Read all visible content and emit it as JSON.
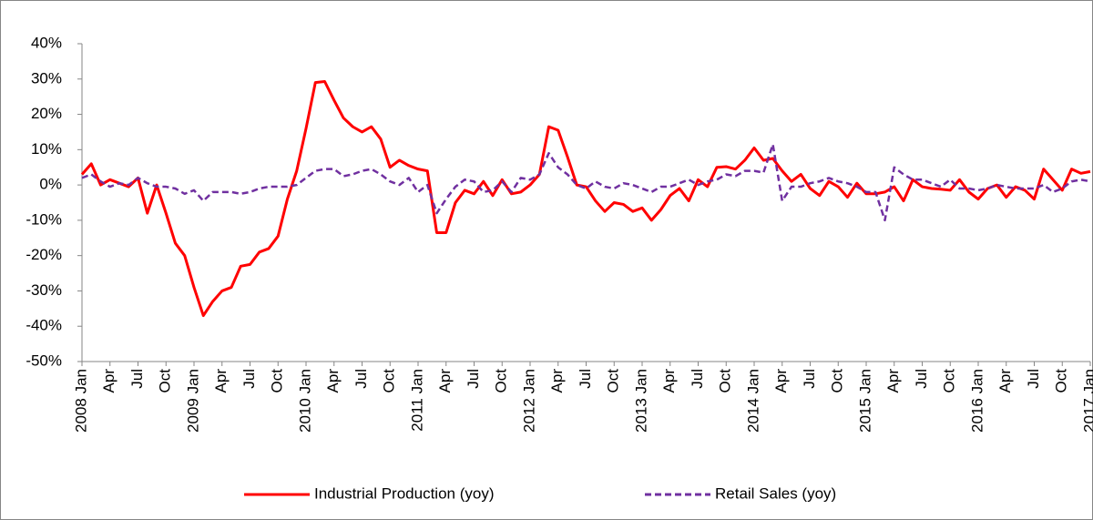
{
  "chart_data": {
    "type": "line",
    "categories": [
      "2008 Jan",
      null,
      null,
      "Apr",
      null,
      null,
      "Jul",
      null,
      null,
      "Oct",
      null,
      null,
      "2009 Jan",
      null,
      null,
      "Apr",
      null,
      null,
      "Jul",
      null,
      null,
      "Oct",
      null,
      null,
      "2010 Jan",
      null,
      null,
      "Apr",
      null,
      null,
      "Jul",
      null,
      null,
      "Oct",
      null,
      null,
      "2011 Jan",
      null,
      null,
      "Apr",
      null,
      null,
      "Jul",
      null,
      null,
      "Oct",
      null,
      null,
      "2012 Jan",
      null,
      null,
      "Apr",
      null,
      null,
      "Jul",
      null,
      null,
      "Oct",
      null,
      null,
      "2013 Jan",
      null,
      null,
      "Apr",
      null,
      null,
      "Jul",
      null,
      null,
      "Oct",
      null,
      null,
      "2014 Jan",
      null,
      null,
      "Apr",
      null,
      null,
      "Jul",
      null,
      null,
      "Oct",
      null,
      null,
      "2015 Jan",
      null,
      null,
      "Apr",
      null,
      null,
      "Jul",
      null,
      null,
      "Oct",
      null,
      null,
      "2016 Jan",
      null,
      null,
      "Apr",
      null,
      null,
      "Jul",
      null,
      null,
      "Oct",
      null,
      null,
      "2017 Jan"
    ],
    "series": [
      {
        "name": "Industrial Production (yoy)",
        "color": "#ff0000",
        "dash": "solid",
        "values": [
          3,
          6,
          0,
          1.5,
          0.5,
          -0.5,
          2,
          -8,
          0,
          -8,
          -16.5,
          -20,
          -29,
          -37,
          -33,
          -30,
          -29,
          -23,
          -22.5,
          -19,
          -18,
          -14.5,
          -4,
          4,
          16,
          29,
          29.3,
          24,
          19,
          16.5,
          15,
          16.5,
          13,
          5,
          7,
          5.5,
          4.5,
          4,
          -13.5,
          -13.5,
          -5,
          -1.5,
          -2.5,
          1,
          -3,
          1.5,
          -2.5,
          -2,
          0,
          3,
          16.5,
          15.5,
          8,
          0,
          -0.5,
          -4.5,
          -7.5,
          -5,
          -5.5,
          -7.5,
          -6.5,
          -10,
          -7,
          -3,
          -1,
          -4.5,
          1.5,
          -0.5,
          5,
          5.2,
          4.5,
          7,
          10.5,
          7,
          7.5,
          4,
          1,
          3,
          -1,
          -3,
          1,
          -0.5,
          -3.5,
          0.5,
          -2.5,
          -2.5,
          -2,
          -0.5,
          -4.5,
          1.5,
          -0.5,
          -1,
          -1.2,
          -1.5,
          1.5,
          -2,
          -4,
          -1,
          0,
          -3.5,
          -0.5,
          -1.5,
          -4,
          4.5,
          1.5,
          -1.5,
          4.5,
          3.3,
          3.8
        ]
      },
      {
        "name": "Retail Sales (yoy)",
        "color": "#7030a0",
        "dash": "dashed",
        "values": [
          2,
          3,
          1,
          -0.5,
          0.5,
          0,
          2,
          0.5,
          -0.5,
          -0.5,
          -1,
          -2.5,
          -1.5,
          -4.5,
          -2,
          -2,
          -2,
          -2.5,
          -2,
          -1,
          -0.5,
          -0.5,
          -0.5,
          0,
          2,
          4,
          4.5,
          4.5,
          2.5,
          3,
          4,
          4.5,
          3,
          1,
          0,
          2,
          -2,
          0,
          -8,
          -4,
          -0.5,
          1.5,
          1,
          -2,
          -1.5,
          1,
          -2,
          2,
          1.5,
          3,
          9,
          5,
          3,
          0,
          -1,
          1,
          -0.5,
          -1,
          0.5,
          0,
          -1,
          -2,
          -0.5,
          -0.5,
          0.5,
          1.5,
          0,
          1,
          1.5,
          3,
          2.5,
          4,
          4,
          3.5,
          11.5,
          -4.5,
          -0.5,
          -0.5,
          0.5,
          1,
          2,
          1,
          0.5,
          -0.5,
          -2,
          -2,
          -10,
          5,
          3,
          1.5,
          1.5,
          0.5,
          -0.5,
          1.5,
          -1,
          -1,
          -1.5,
          -1,
          0,
          -0.5,
          -1,
          -1,
          -1,
          0,
          -2,
          -1,
          1,
          1.5,
          1
        ]
      }
    ],
    "ylim": [
      -50,
      40
    ],
    "yticks": [
      {
        "value": -50,
        "label": "-50%"
      },
      {
        "value": -40,
        "label": "-40%"
      },
      {
        "value": -30,
        "label": "-30%"
      },
      {
        "value": -20,
        "label": "-20%"
      },
      {
        "value": -10,
        "label": "-10%"
      },
      {
        "value": 0,
        "label": "0%"
      },
      {
        "value": 10,
        "label": "10%"
      },
      {
        "value": 20,
        "label": "20%"
      },
      {
        "value": 30,
        "label": "30%"
      },
      {
        "value": 40,
        "label": "40%"
      }
    ],
    "grid": false,
    "legend": "bottom"
  }
}
